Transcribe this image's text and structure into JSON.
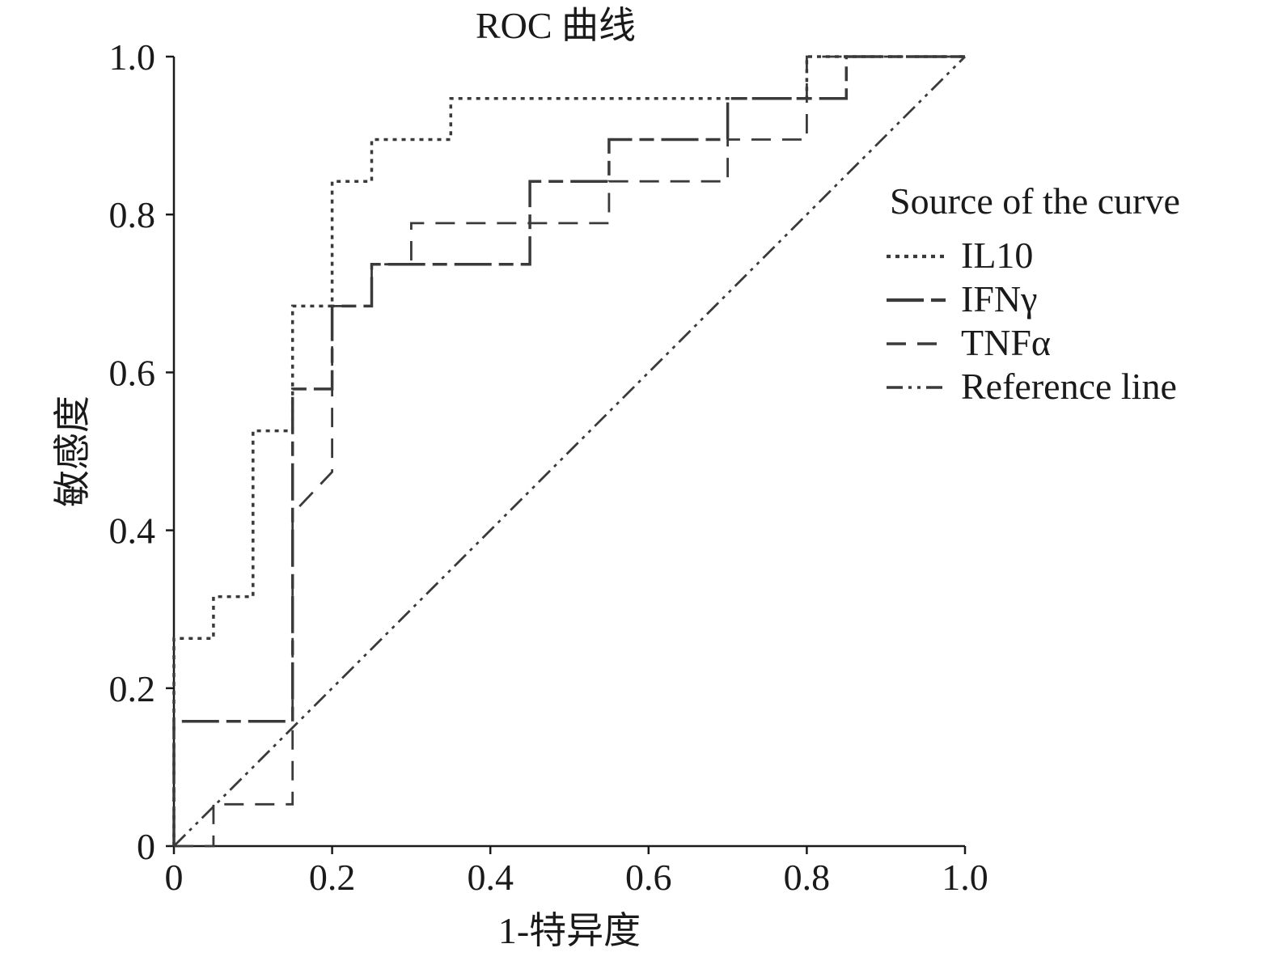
{
  "chart_data": {
    "type": "line",
    "title": "ROC 曲线",
    "xlabel": "1-特异度",
    "ylabel": "敏感度",
    "xlim": [
      0,
      1
    ],
    "ylim": [
      0,
      1
    ],
    "x_ticks": [
      "0",
      "0.2",
      "0.4",
      "0.6",
      "0.8",
      "1.0"
    ],
    "y_ticks": [
      "0",
      "0.2",
      "0.4",
      "0.6",
      "0.8",
      "1.0"
    ],
    "grid": false,
    "legend": {
      "title": "Source of the curve",
      "position": "right"
    },
    "series": [
      {
        "name": "IL10",
        "dash": "dotted",
        "color": "#3a3a3a",
        "points": [
          [
            0,
            0
          ],
          [
            0,
            0.263
          ],
          [
            0.05,
            0.263
          ],
          [
            0.05,
            0.316
          ],
          [
            0.1,
            0.316
          ],
          [
            0.1,
            0.526
          ],
          [
            0.15,
            0.526
          ],
          [
            0.15,
            0.684
          ],
          [
            0.2,
            0.684
          ],
          [
            0.2,
            0.842
          ],
          [
            0.25,
            0.842
          ],
          [
            0.25,
            0.895
          ],
          [
            0.35,
            0.895
          ],
          [
            0.35,
            0.947
          ],
          [
            0.8,
            0.947
          ],
          [
            0.8,
            1.0
          ],
          [
            1.0,
            1.0
          ]
        ]
      },
      {
        "name": "IFNγ",
        "dash": "long-dash-dot",
        "color": "#3a3a3a",
        "points": [
          [
            0,
            0
          ],
          [
            0,
            0.158
          ],
          [
            0.15,
            0.158
          ],
          [
            0.15,
            0.579
          ],
          [
            0.2,
            0.579
          ],
          [
            0.2,
            0.684
          ],
          [
            0.25,
            0.684
          ],
          [
            0.25,
            0.737
          ],
          [
            0.45,
            0.737
          ],
          [
            0.45,
            0.842
          ],
          [
            0.55,
            0.842
          ],
          [
            0.55,
            0.895
          ],
          [
            0.7,
            0.895
          ],
          [
            0.7,
            0.947
          ],
          [
            0.85,
            0.947
          ],
          [
            0.85,
            1.0
          ],
          [
            1.0,
            1.0
          ]
        ]
      },
      {
        "name": "TNFα",
        "dash": "dash",
        "color": "#3a3a3a",
        "points": [
          [
            0,
            0
          ],
          [
            0.05,
            0
          ],
          [
            0.05,
            0.053
          ],
          [
            0.15,
            0.053
          ],
          [
            0.15,
            0.421
          ],
          [
            0.2,
            0.474
          ],
          [
            0.2,
            0.684
          ],
          [
            0.25,
            0.684
          ],
          [
            0.25,
            0.737
          ],
          [
            0.3,
            0.737
          ],
          [
            0.3,
            0.789
          ],
          [
            0.55,
            0.789
          ],
          [
            0.55,
            0.842
          ],
          [
            0.7,
            0.842
          ],
          [
            0.7,
            0.895
          ],
          [
            0.8,
            0.895
          ],
          [
            0.8,
            1.0
          ],
          [
            1.0,
            1.0
          ]
        ]
      },
      {
        "name": "Reference line",
        "dash": "dash-dot-dot",
        "color": "#3a3a3a",
        "points": [
          [
            0,
            0
          ],
          [
            1,
            1
          ]
        ]
      }
    ]
  }
}
